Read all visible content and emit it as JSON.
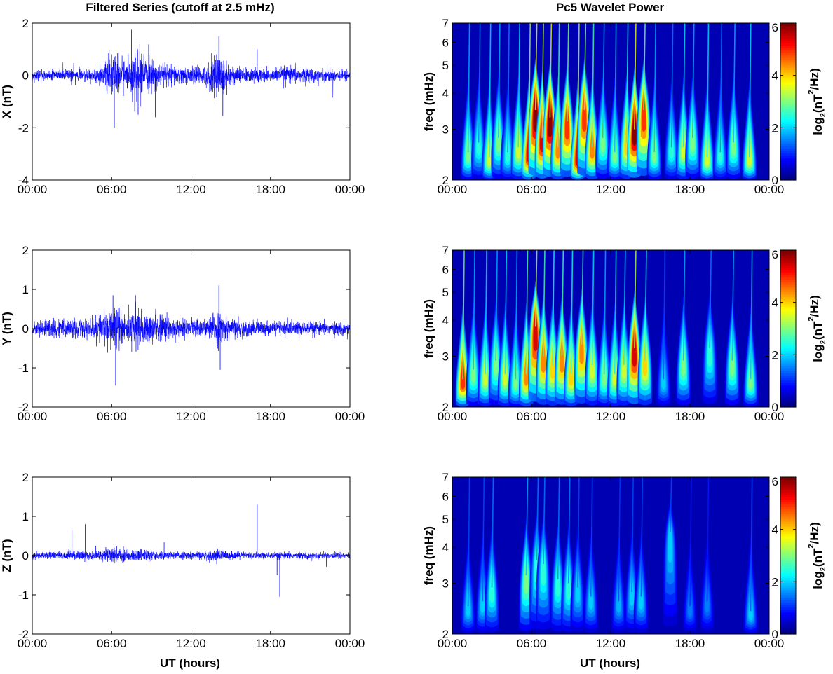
{
  "chart_data": [
    {
      "type": "line",
      "panel": "left",
      "title": "Filtered Series (cutoff at 2.5 mHz)",
      "ylabel": "X (nT)",
      "xlabel": "",
      "xticks": [
        "00:00",
        "06:00",
        "12:00",
        "18:00",
        "00:00"
      ],
      "yticks": [
        "2",
        "0",
        "-2",
        "-4"
      ],
      "ylim": [
        -4,
        2
      ],
      "xlim_hours": [
        0,
        24
      ],
      "grid": false,
      "color": "#0000ff",
      "series": [
        {
          "values_envelope": {
            "hours": [
              0,
              1,
              2,
              3,
              4,
              5,
              5.5,
              6,
              6.5,
              7,
              7.5,
              8,
              8.5,
              9,
              9.5,
              10,
              11,
              12,
              13,
              13.5,
              14,
              14.5,
              15,
              16,
              17,
              18,
              19,
              20,
              21,
              22,
              23,
              24
            ],
            "amplitude_nT": [
              0.2,
              0.25,
              0.25,
              0.3,
              0.25,
              0.35,
              0.6,
              0.9,
              1.0,
              0.8,
              0.9,
              1.2,
              0.8,
              0.7,
              0.6,
              0.6,
              0.4,
              0.4,
              0.45,
              0.8,
              1.3,
              0.8,
              0.5,
              0.35,
              0.35,
              0.3,
              0.4,
              0.4,
              0.3,
              0.3,
              0.3,
              0.25
            ]
          }
        }
      ],
      "spikes": [
        {
          "hour": 6.2,
          "value": -2.0
        },
        {
          "hour": 7.5,
          "value": 1.75
        },
        {
          "hour": 8.0,
          "value": -1.5
        },
        {
          "hour": 9.3,
          "value": -1.6
        },
        {
          "hour": 14.1,
          "value": 1.5
        },
        {
          "hour": 14.4,
          "value": -1.55
        },
        {
          "hour": 17.0,
          "value": 1.0
        }
      ]
    },
    {
      "type": "line",
      "panel": "left",
      "title": "",
      "ylabel": "Y (nT)",
      "xlabel": "",
      "xticks": [
        "00:00",
        "06:00",
        "12:00",
        "18:00",
        "00:00"
      ],
      "yticks": [
        "2",
        "1",
        "0",
        "-1",
        "-2"
      ],
      "ylim": [
        -2,
        2
      ],
      "xlim_hours": [
        0,
        24
      ],
      "grid": false,
      "color": "#0000ff",
      "series": [
        {
          "values_envelope": {
            "hours": [
              0,
              1,
              2,
              3,
              4,
              5,
              5.5,
              6,
              6.5,
              7,
              7.5,
              8,
              8.5,
              9,
              9.5,
              10,
              11,
              12,
              13,
              13.5,
              14,
              14.5,
              15,
              16,
              17,
              18,
              19,
              20,
              21,
              22,
              23,
              24
            ],
            "amplitude_nT": [
              0.2,
              0.3,
              0.3,
              0.3,
              0.3,
              0.35,
              0.5,
              0.65,
              0.6,
              0.5,
              0.55,
              0.6,
              0.5,
              0.45,
              0.4,
              0.45,
              0.3,
              0.3,
              0.3,
              0.4,
              0.6,
              0.4,
              0.3,
              0.25,
              0.25,
              0.2,
              0.25,
              0.25,
              0.2,
              0.2,
              0.2,
              0.2
            ]
          }
        }
      ],
      "spikes": [
        {
          "hour": 6.3,
          "value": -1.45
        },
        {
          "hour": 6.1,
          "value": 0.85
        },
        {
          "hour": 14.1,
          "value": 1.1
        },
        {
          "hour": 14.2,
          "value": -1.05
        },
        {
          "hour": 7.8,
          "value": 0.85
        }
      ]
    },
    {
      "type": "line",
      "panel": "left",
      "title": "",
      "ylabel": "Z (nT)",
      "xlabel": "UT (hours)",
      "xticks": [
        "00:00",
        "06:00",
        "12:00",
        "18:00",
        "00:00"
      ],
      "yticks": [
        "2",
        "1",
        "0",
        "-1",
        "-2"
      ],
      "ylim": [
        -2,
        2
      ],
      "xlim_hours": [
        0,
        24
      ],
      "grid": false,
      "color": "#0000ff",
      "series": [
        {
          "values_envelope": {
            "hours": [
              0,
              1,
              2,
              3,
              4,
              5,
              5.5,
              6,
              6.5,
              7,
              7.5,
              8,
              8.5,
              9,
              9.5,
              10,
              11,
              12,
              13,
              13.5,
              14,
              14.5,
              15,
              16,
              17,
              18,
              19,
              20,
              21,
              22,
              23,
              24
            ],
            "amplitude_nT": [
              0.1,
              0.12,
              0.12,
              0.15,
              0.15,
              0.15,
              0.2,
              0.25,
              0.25,
              0.2,
              0.2,
              0.2,
              0.18,
              0.18,
              0.15,
              0.15,
              0.12,
              0.12,
              0.12,
              0.15,
              0.2,
              0.15,
              0.12,
              0.12,
              0.1,
              0.1,
              0.1,
              0.1,
              0.1,
              0.1,
              0.1,
              0.1
            ]
          }
        }
      ],
      "spikes": [
        {
          "hour": 3.0,
          "value": 0.65
        },
        {
          "hour": 4.0,
          "value": 0.8
        },
        {
          "hour": 17.0,
          "value": 1.3
        },
        {
          "hour": 18.7,
          "value": -1.05
        },
        {
          "hour": 18.5,
          "value": -0.5
        }
      ]
    },
    {
      "type": "heatmap",
      "panel": "right",
      "title": "Pc5 Wavelet Power",
      "ylabel": "freq (mHz)",
      "xlabel": "",
      "xticks": [
        "00:00",
        "06:00",
        "12:00",
        "18:00",
        "00:00"
      ],
      "yticks": [
        "2",
        "3",
        "4",
        "5",
        "6",
        "7"
      ],
      "ylim_mHz": [
        2,
        7
      ],
      "yscale": "log",
      "xlim_hours": [
        0,
        24
      ],
      "colorbar_label": "log2(nT2/Hz)",
      "colorbar_ticks": [
        "0",
        "2",
        "4",
        "6"
      ],
      "clim": [
        0,
        6
      ],
      "colormap": "jet",
      "blobs": [
        {
          "hour": 1.2,
          "freq_mHz": 2.5,
          "peak": 3.0
        },
        {
          "hour": 2.0,
          "freq_mHz": 2.7,
          "peak": 2.5
        },
        {
          "hour": 2.8,
          "freq_mHz": 2.4,
          "peak": 3.5
        },
        {
          "hour": 3.5,
          "freq_mHz": 2.8,
          "peak": 3.0
        },
        {
          "hour": 4.2,
          "freq_mHz": 2.5,
          "peak": 2.5
        },
        {
          "hour": 5.0,
          "freq_mHz": 2.6,
          "peak": 3.5
        },
        {
          "hour": 5.8,
          "freq_mHz": 2.5,
          "peak": 5.5
        },
        {
          "hour": 6.3,
          "freq_mHz": 3.5,
          "peak": 6.0
        },
        {
          "hour": 6.8,
          "freq_mHz": 2.8,
          "peak": 5.5
        },
        {
          "hour": 7.4,
          "freq_mHz": 3.3,
          "peak": 6.0
        },
        {
          "hour": 8.0,
          "freq_mHz": 2.6,
          "peak": 4.5
        },
        {
          "hour": 8.7,
          "freq_mHz": 3.2,
          "peak": 5.0
        },
        {
          "hour": 9.5,
          "freq_mHz": 2.4,
          "peak": 5.5
        },
        {
          "hour": 10.0,
          "freq_mHz": 3.5,
          "peak": 5.0
        },
        {
          "hour": 10.6,
          "freq_mHz": 2.6,
          "peak": 4.5
        },
        {
          "hour": 11.4,
          "freq_mHz": 2.8,
          "peak": 3.0
        },
        {
          "hour": 12.3,
          "freq_mHz": 2.5,
          "peak": 3.0
        },
        {
          "hour": 13.2,
          "freq_mHz": 2.7,
          "peak": 4.0
        },
        {
          "hour": 13.8,
          "freq_mHz": 3.0,
          "peak": 6.0
        },
        {
          "hour": 14.5,
          "freq_mHz": 3.5,
          "peak": 5.0
        },
        {
          "hour": 15.3,
          "freq_mHz": 2.5,
          "peak": 3.0
        },
        {
          "hour": 16.6,
          "freq_mHz": 2.6,
          "peak": 2.5
        },
        {
          "hour": 17.5,
          "freq_mHz": 2.6,
          "peak": 3.5
        },
        {
          "hour": 18.2,
          "freq_mHz": 2.8,
          "peak": 3.0
        },
        {
          "hour": 19.3,
          "freq_mHz": 2.4,
          "peak": 3.5
        },
        {
          "hour": 20.3,
          "freq_mHz": 2.5,
          "peak": 2.5
        },
        {
          "hour": 21.3,
          "freq_mHz": 2.7,
          "peak": 3.0
        },
        {
          "hour": 22.5,
          "freq_mHz": 2.4,
          "peak": 3.5
        }
      ]
    },
    {
      "type": "heatmap",
      "panel": "right",
      "title": "",
      "ylabel": "freq (mHz)",
      "xlabel": "",
      "xticks": [
        "00:00",
        "06:00",
        "12:00",
        "18:00",
        "00:00"
      ],
      "yticks": [
        "2",
        "3",
        "4",
        "5",
        "6",
        "7"
      ],
      "ylim_mHz": [
        2,
        7
      ],
      "yscale": "log",
      "xlim_hours": [
        0,
        24
      ],
      "colorbar_label": "log2(nT2/Hz)",
      "colorbar_ticks": [
        "0",
        "2",
        "4",
        "6"
      ],
      "clim": [
        0,
        6
      ],
      "colormap": "jet",
      "blobs": [
        {
          "hour": 0.8,
          "freq_mHz": 2.5,
          "peak": 5.0
        },
        {
          "hour": 1.6,
          "freq_mHz": 2.7,
          "peak": 3.0
        },
        {
          "hour": 2.5,
          "freq_mHz": 2.6,
          "peak": 3.5
        },
        {
          "hour": 3.3,
          "freq_mHz": 2.9,
          "peak": 3.0
        },
        {
          "hour": 4.0,
          "freq_mHz": 2.6,
          "peak": 3.5
        },
        {
          "hour": 4.8,
          "freq_mHz": 2.5,
          "peak": 3.0
        },
        {
          "hour": 5.6,
          "freq_mHz": 2.6,
          "peak": 4.5
        },
        {
          "hour": 6.3,
          "freq_mHz": 3.8,
          "peak": 5.5
        },
        {
          "hour": 6.9,
          "freq_mHz": 3.0,
          "peak": 4.5
        },
        {
          "hour": 7.6,
          "freq_mHz": 2.8,
          "peak": 4.0
        },
        {
          "hour": 8.3,
          "freq_mHz": 3.0,
          "peak": 4.5
        },
        {
          "hour": 9.0,
          "freq_mHz": 2.6,
          "peak": 4.0
        },
        {
          "hour": 9.8,
          "freq_mHz": 3.3,
          "peak": 4.5
        },
        {
          "hour": 10.6,
          "freq_mHz": 2.8,
          "peak": 3.5
        },
        {
          "hour": 11.5,
          "freq_mHz": 2.6,
          "peak": 3.0
        },
        {
          "hour": 12.3,
          "freq_mHz": 2.6,
          "peak": 3.5
        },
        {
          "hour": 13.0,
          "freq_mHz": 2.8,
          "peak": 3.5
        },
        {
          "hour": 13.8,
          "freq_mHz": 3.2,
          "peak": 5.5
        },
        {
          "hour": 14.6,
          "freq_mHz": 2.9,
          "peak": 4.0
        },
        {
          "hour": 16.0,
          "freq_mHz": 2.5,
          "peak": 2.0
        },
        {
          "hour": 17.5,
          "freq_mHz": 2.9,
          "peak": 3.0
        },
        {
          "hour": 19.5,
          "freq_mHz": 3.2,
          "peak": 2.5
        },
        {
          "hour": 21.2,
          "freq_mHz": 2.9,
          "peak": 3.0
        },
        {
          "hour": 22.6,
          "freq_mHz": 2.5,
          "peak": 3.0
        }
      ]
    },
    {
      "type": "heatmap",
      "panel": "right",
      "title": "",
      "ylabel": "freq (mHz)",
      "xlabel": "UT (hours)",
      "xticks": [
        "00:00",
        "06:00",
        "12:00",
        "18:00",
        "00:00"
      ],
      "yticks": [
        "2",
        "3",
        "4",
        "5",
        "6",
        "7"
      ],
      "ylim_mHz": [
        2,
        7
      ],
      "yscale": "log",
      "xlim_hours": [
        0,
        24
      ],
      "colorbar_label": "log2(nT2/Hz)",
      "colorbar_ticks": [
        "0",
        "2",
        "4",
        "6"
      ],
      "clim": [
        0,
        6
      ],
      "colormap": "jet",
      "blobs": [
        {
          "hour": 1.2,
          "freq_mHz": 2.5,
          "peak": 2.0
        },
        {
          "hour": 2.3,
          "freq_mHz": 2.6,
          "peak": 2.0
        },
        {
          "hour": 3.0,
          "freq_mHz": 2.9,
          "peak": 2.5
        },
        {
          "hour": 5.6,
          "freq_mHz": 3.2,
          "peak": 3.0
        },
        {
          "hour": 6.4,
          "freq_mHz": 3.6,
          "peak": 2.5
        },
        {
          "hour": 6.9,
          "freq_mHz": 3.5,
          "peak": 2.5
        },
        {
          "hour": 8.0,
          "freq_mHz": 3.1,
          "peak": 2.5
        },
        {
          "hour": 8.8,
          "freq_mHz": 3.0,
          "peak": 2.5
        },
        {
          "hour": 9.5,
          "freq_mHz": 2.9,
          "peak": 2.0
        },
        {
          "hour": 10.5,
          "freq_mHz": 2.7,
          "peak": 2.0
        },
        {
          "hour": 12.6,
          "freq_mHz": 2.6,
          "peak": 1.8
        },
        {
          "hour": 13.6,
          "freq_mHz": 2.8,
          "peak": 2.0
        },
        {
          "hour": 14.3,
          "freq_mHz": 2.7,
          "peak": 2.0
        },
        {
          "hour": 16.5,
          "freq_mHz": 4.5,
          "peak": 2.0
        },
        {
          "hour": 18.0,
          "freq_mHz": 2.5,
          "peak": 1.5
        },
        {
          "hour": 19.3,
          "freq_mHz": 2.6,
          "peak": 1.5
        },
        {
          "hour": 22.6,
          "freq_mHz": 2.4,
          "peak": 2.0
        }
      ]
    }
  ]
}
